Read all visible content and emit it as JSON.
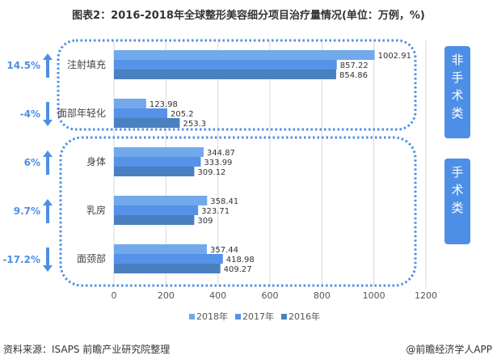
{
  "title": "图表2：2016-2018年全球整形美容细分项目治疗量情况(单位：万例，%)",
  "colors": {
    "s2018": "#72a9eb",
    "s2017": "#5592e8",
    "s2016": "#4a80c0",
    "accent": "#4d8fe6"
  },
  "side_labels": {
    "non_surgical": "非手术类",
    "surgical": "手术类"
  },
  "source": "资料来源：ISAPS 前瞻产业研究院整理",
  "credit": "@前瞻经济学人APP",
  "chart_data": {
    "type": "bar",
    "orientation": "horizontal",
    "title": "图表2：2016-2018年全球整形美容细分项目治疗量情况(单位：万例，%)",
    "categories": [
      "注射填充",
      "面部年轻化",
      "身体",
      "乳房",
      "面颈部"
    ],
    "series": [
      {
        "name": "2018年",
        "values": [
          1002.91,
          123.98,
          344.87,
          358.41,
          357.44
        ]
      },
      {
        "name": "2017年",
        "values": [
          857.22,
          205.2,
          333.99,
          323.71,
          418.98
        ]
      },
      {
        "name": "2016年",
        "values": [
          854.86,
          253.3,
          309.12,
          309,
          409.27
        ]
      }
    ],
    "value_labels": [
      [
        "1002.91",
        "857.22",
        "854.86"
      ],
      [
        "123.98",
        "205.2",
        "253.3"
      ],
      [
        "344.87",
        "333.99",
        "309.12"
      ],
      [
        "358.41",
        "323.71",
        "309"
      ],
      [
        "357.44",
        "418.98",
        "409.27"
      ]
    ],
    "growth": [
      {
        "label": "14.5%",
        "direction": "up"
      },
      {
        "label": "-4%",
        "direction": "down"
      },
      {
        "label": "6%",
        "direction": "up"
      },
      {
        "label": "9.7%",
        "direction": "up"
      },
      {
        "label": "-17.2%",
        "direction": "down"
      }
    ],
    "xlim": [
      0,
      1200
    ],
    "xticks": [
      "0",
      "200",
      "400",
      "600",
      "800",
      "1000",
      "1200"
    ],
    "grid": true,
    "legend_position": "bottom"
  }
}
